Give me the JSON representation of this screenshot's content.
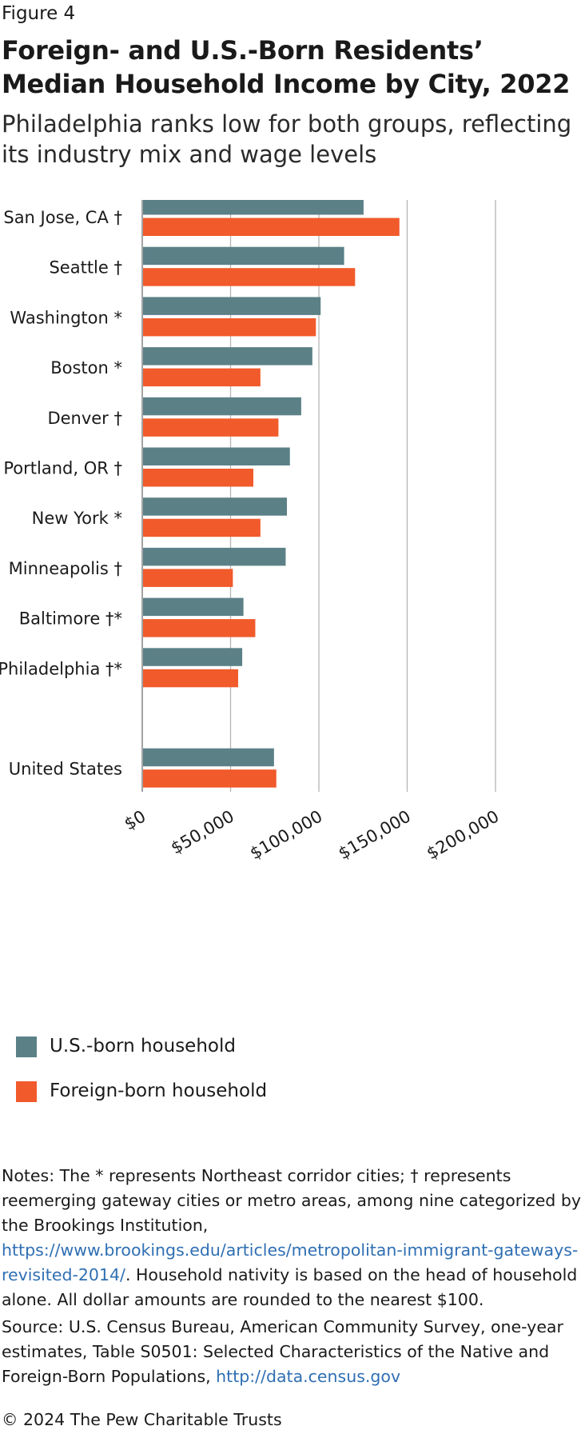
{
  "figure_label": "Figure 4",
  "title": "Foreign- and U.S.-Born Residents’ Median Household Income by City, 2022",
  "subtitle": "Philadelphia ranks low for both groups, reflecting its industry mix and wage levels",
  "colors": {
    "us_born": "#5b8187",
    "foreign_born": "#f15a2b",
    "axis": "#999999"
  },
  "chart_data": {
    "type": "bar",
    "orientation": "horizontal",
    "categories": [
      "San Jose, CA †",
      "Seattle †",
      "Washington *",
      "Boston *",
      "Denver †",
      "Portland, OR †",
      "New York *",
      "Minneapolis †",
      "Baltimore †*",
      "Philadelphia †*",
      "United States"
    ],
    "series": [
      {
        "name": "U.S.-born household",
        "values": [
          125300,
          114300,
          101000,
          96300,
          90000,
          83600,
          81900,
          81200,
          57300,
          56600,
          74600
        ]
      },
      {
        "name": "Foreign-born household",
        "values": [
          145600,
          120500,
          98300,
          66900,
          77100,
          62900,
          66900,
          51300,
          64000,
          54300,
          75900
        ]
      }
    ],
    "xlim": [
      0,
      200000
    ],
    "xticks": [
      0,
      50000,
      100000,
      150000,
      200000
    ],
    "xtick_labels": [
      "$0",
      "$50,000",
      "$100,000",
      "$150,000",
      "$200,000"
    ],
    "grid": true,
    "legend_position": "bottom-left"
  },
  "legend": [
    {
      "label": "U.S.-born household"
    },
    {
      "label": "Foreign-born household"
    }
  ],
  "notes": {
    "text_before": "Notes: The * represents Northeast corridor cities; † represents reemerging gateway cities or metro areas, among nine categorized by the Brookings Institution, ",
    "link": "https://www.brookings.edu/articles/metropolitan-immigrant-gateways-revisited-2014/",
    "text_after": ". Household nativity is based on the head of household alone. All dollar amounts are rounded to the nearest $100."
  },
  "source": {
    "text_before": "Source: U.S. Census Bureau, American Community Survey, one-year estimates, Table S0501: Selected Characteristics of the Native and Foreign-Born Populations, ",
    "link": "http://data.census.gov"
  },
  "copyright": "© 2024 The Pew Charitable Trusts"
}
